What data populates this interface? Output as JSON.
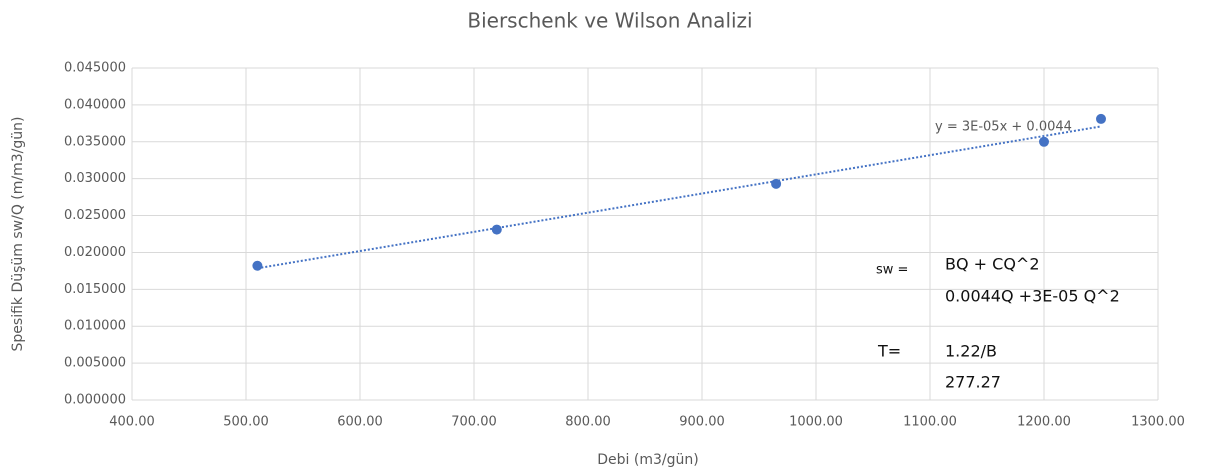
{
  "chart_data": {
    "type": "scatter",
    "title": "Bierschenk ve Wilson Analizi",
    "x_label": "Debi (m3/gün)",
    "y_label": "Spesifik Düşüm  sw/Q (m/m3/gün)",
    "series": [
      {
        "name": "sw/Q",
        "color": "#4472c4",
        "x": [
          510,
          720,
          965,
          1200,
          1250
        ],
        "values": [
          0.0182,
          0.0231,
          0.0293,
          0.035,
          0.0381
        ]
      }
    ],
    "trendline": {
      "label": "y = 3E-05x + 0.0044",
      "style": "dotted"
    },
    "annotations": [
      "sw =",
      "BQ + CQ^2",
      "0.0044Q +3E-05 Q^2",
      "T=",
      "1.22/B",
      "277.27"
    ],
    "xlim": [
      400,
      1300
    ],
    "xticks": [
      {
        "value": 400,
        "label": "400.00"
      },
      {
        "value": 500,
        "label": "500.00"
      },
      {
        "value": 600,
        "label": "600.00"
      },
      {
        "value": 700,
        "label": "700.00"
      },
      {
        "value": 800,
        "label": "800.00"
      },
      {
        "value": 900,
        "label": "900.00"
      },
      {
        "value": 1000,
        "label": "1000.00"
      },
      {
        "value": 1100,
        "label": "1100.00"
      },
      {
        "value": 1200,
        "label": "1200.00"
      },
      {
        "value": 1300,
        "label": "1300.00"
      }
    ],
    "ylim": [
      0,
      0.045
    ],
    "yticks": [
      {
        "value": 0,
        "label": "0.000000"
      },
      {
        "value": 0.005,
        "label": "0.005000"
      },
      {
        "value": 0.01,
        "label": "0.010000"
      },
      {
        "value": 0.015,
        "label": "0.015000"
      },
      {
        "value": 0.02,
        "label": "0.020000"
      },
      {
        "value": 0.025,
        "label": "0.025000"
      },
      {
        "value": 0.03,
        "label": "0.030000"
      },
      {
        "value": 0.035,
        "label": "0.035000"
      },
      {
        "value": 0.04,
        "label": "0.040000"
      },
      {
        "value": 0.045,
        "label": "0.045000"
      }
    ],
    "grid": true
  }
}
